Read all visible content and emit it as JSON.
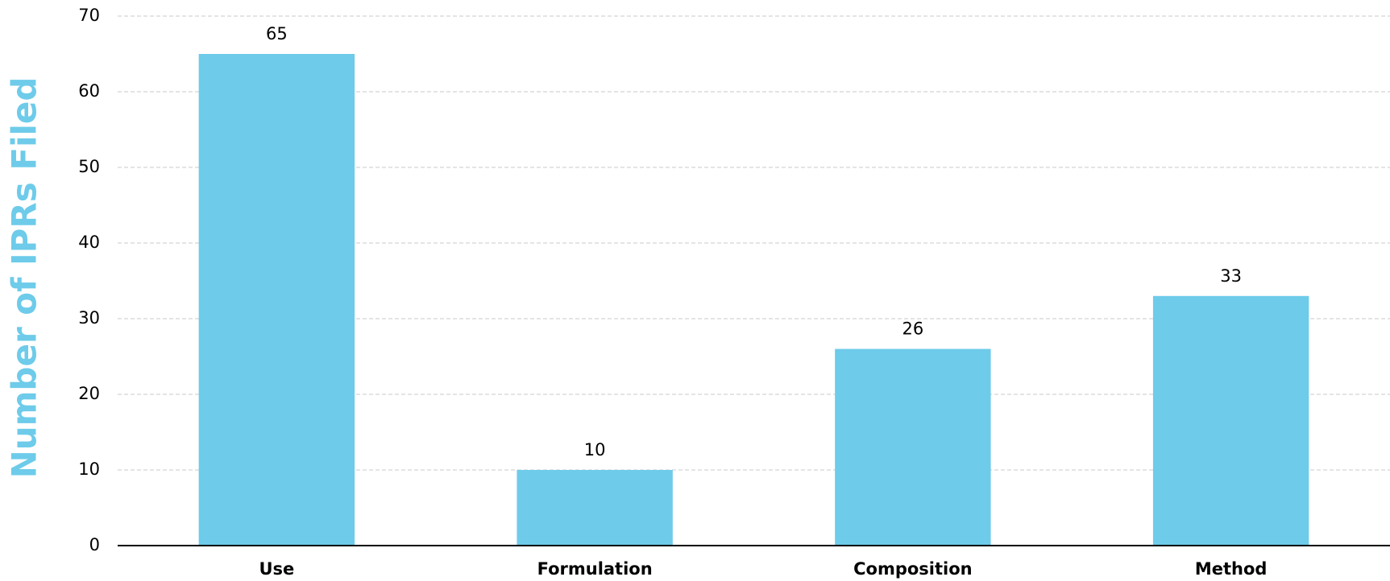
{
  "chart_data": {
    "type": "bar",
    "y_label": "Number of IPRs Filed",
    "categories": [
      "Use",
      "Formulation",
      "Composition",
      "Method"
    ],
    "values": [
      65,
      10,
      26,
      33
    ],
    "color": "#6ecbea",
    "ylim": [
      0,
      70
    ],
    "yticks": [
      0,
      10,
      20,
      30,
      40,
      50,
      60,
      70
    ],
    "grid": true
  }
}
